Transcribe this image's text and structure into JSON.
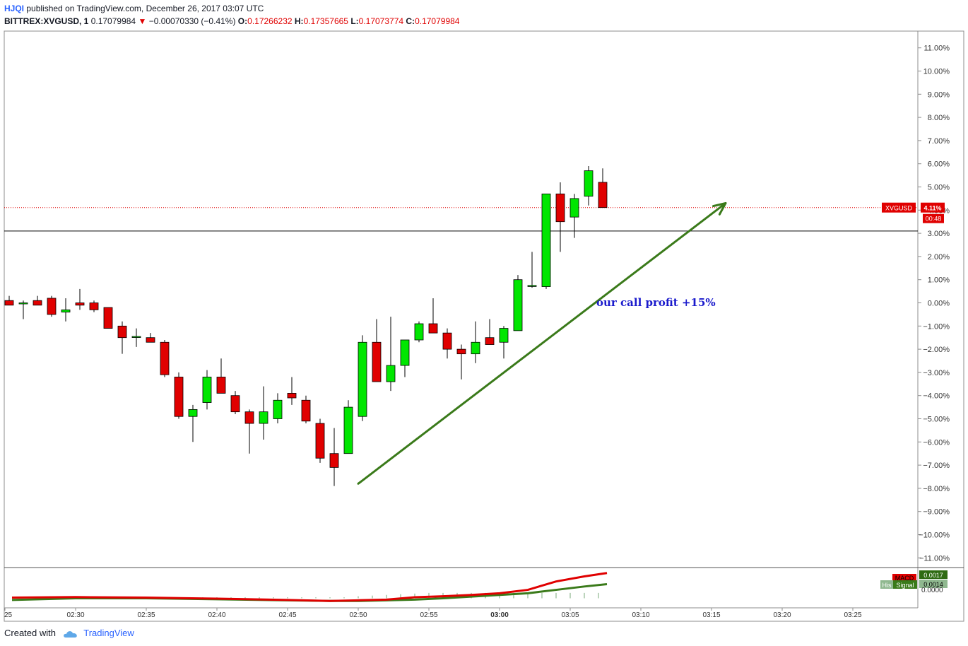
{
  "header": {
    "author": "HJQI",
    "published": "published on TradingView.com, December 26, 2017 03:07 UTC",
    "symbol": "BITTREX:XVGUSD, 1",
    "last": "0.17079984",
    "change_arrow": "▼",
    "change": "−0.00070330 (−0.41%)",
    "o_label": "O:",
    "o_value": "0.17266232",
    "h_label": "H:",
    "h_value": "0.17357665",
    "l_label": "L:",
    "l_value": "0.17073774",
    "c_label": "C:",
    "c_value": "0.17079984"
  },
  "footer": {
    "created_with": "Created with",
    "brand": "TradingView"
  },
  "colors": {
    "up": "#00e600",
    "down": "#e00000",
    "wick": "#000000",
    "arrow": "#3a7a1a",
    "annotation": "#1a1acc",
    "macd": "#e00000",
    "signal": "#3a7a1a",
    "histogram": "#8fb88f"
  },
  "chart_data": {
    "type": "candlestick",
    "y_unit": "%",
    "ylim": [
      -11.5,
      11.5
    ],
    "y_ticks": [
      "11.00%",
      "10.00%",
      "9.00%",
      "8.00%",
      "7.00%",
      "6.00%",
      "5.00%",
      "4.00%",
      "3.00%",
      "2.00%",
      "1.00%",
      "0.00%",
      "−1.00%",
      "−2.00%",
      "−3.00%",
      "−4.00%",
      "−5.00%",
      "−6.00%",
      "−7.00%",
      "−8.00%",
      "−9.00%",
      "−10.00%",
      "−11.00%"
    ],
    "x_ticks": [
      {
        "label": "25",
        "t": -5
      },
      {
        "label": "02:30",
        "t": 0
      },
      {
        "label": "02:35",
        "t": 5
      },
      {
        "label": "02:40",
        "t": 10
      },
      {
        "label": "02:45",
        "t": 15
      },
      {
        "label": "02:50",
        "t": 20
      },
      {
        "label": "02:55",
        "t": 25
      },
      {
        "label": "03:00",
        "t": 30,
        "bold": true
      },
      {
        "label": "03:05",
        "t": 35
      },
      {
        "label": "03:10",
        "t": 40
      },
      {
        "label": "03:15",
        "t": 45
      },
      {
        "label": "03:20",
        "t": 50
      },
      {
        "label": "03:25",
        "t": 55
      }
    ],
    "candles": [
      {
        "t": -4.7,
        "o": 0.1,
        "h": 0.3,
        "l": -0.1,
        "c": -0.1
      },
      {
        "t": -3.7,
        "o": 0.0,
        "h": 0.1,
        "l": -0.7,
        "c": 0.0
      },
      {
        "t": -2.7,
        "o": 0.1,
        "h": 0.3,
        "l": -0.1,
        "c": -0.1
      },
      {
        "t": -1.7,
        "o": 0.2,
        "h": 0.3,
        "l": -0.6,
        "c": -0.5
      },
      {
        "t": -0.7,
        "o": -0.4,
        "h": 0.2,
        "l": -0.8,
        "c": -0.3
      },
      {
        "t": 0.3,
        "o": 0.0,
        "h": 0.6,
        "l": -0.3,
        "c": -0.1
      },
      {
        "t": 1.3,
        "o": 0.0,
        "h": 0.1,
        "l": -0.4,
        "c": -0.3
      },
      {
        "t": 2.3,
        "o": -0.2,
        "h": -0.2,
        "l": -1.1,
        "c": -1.1
      },
      {
        "t": 3.3,
        "o": -1.0,
        "h": -0.8,
        "l": -2.2,
        "c": -1.5
      },
      {
        "t": 4.3,
        "o": -1.45,
        "h": -1.1,
        "l": -1.9,
        "c": -1.45
      },
      {
        "t": 5.3,
        "o": -1.5,
        "h": -1.3,
        "l": -1.7,
        "c": -1.7
      },
      {
        "t": 6.3,
        "o": -1.7,
        "h": -1.6,
        "l": -3.2,
        "c": -3.1
      },
      {
        "t": 7.3,
        "o": -3.2,
        "h": -3.0,
        "l": -5.0,
        "c": -4.9
      },
      {
        "t": 8.3,
        "o": -4.9,
        "h": -4.4,
        "l": -6.0,
        "c": -4.6
      },
      {
        "t": 9.3,
        "o": -4.3,
        "h": -2.9,
        "l": -4.6,
        "c": -3.2
      },
      {
        "t": 10.3,
        "o": -3.2,
        "h": -2.4,
        "l": -3.9,
        "c": -3.9
      },
      {
        "t": 11.3,
        "o": -4.0,
        "h": -3.8,
        "l": -4.8,
        "c": -4.7
      },
      {
        "t": 12.3,
        "o": -4.7,
        "h": -4.6,
        "l": -6.5,
        "c": -5.2
      },
      {
        "t": 13.3,
        "o": -5.2,
        "h": -3.6,
        "l": -5.9,
        "c": -4.7
      },
      {
        "t": 14.3,
        "o": -5.0,
        "h": -3.9,
        "l": -5.2,
        "c": -4.2
      },
      {
        "t": 15.3,
        "o": -3.9,
        "h": -3.2,
        "l": -4.4,
        "c": -4.1
      },
      {
        "t": 16.3,
        "o": -4.2,
        "h": -4.0,
        "l": -5.2,
        "c": -5.1
      },
      {
        "t": 17.3,
        "o": -5.2,
        "h": -5.0,
        "l": -6.9,
        "c": -6.7
      },
      {
        "t": 18.3,
        "o": -6.5,
        "h": -5.4,
        "l": -7.9,
        "c": -7.1
      },
      {
        "t": 19.3,
        "o": -6.5,
        "h": -4.2,
        "l": -6.5,
        "c": -4.5
      },
      {
        "t": 20.3,
        "o": -4.9,
        "h": -1.4,
        "l": -5.1,
        "c": -1.7
      },
      {
        "t": 21.3,
        "o": -1.7,
        "h": -0.7,
        "l": -3.4,
        "c": -3.4
      },
      {
        "t": 22.3,
        "o": -3.4,
        "h": -0.6,
        "l": -3.8,
        "c": -2.7
      },
      {
        "t": 23.3,
        "o": -2.7,
        "h": -1.6,
        "l": -3.2,
        "c": -1.6
      },
      {
        "t": 24.3,
        "o": -1.6,
        "h": -0.8,
        "l": -1.7,
        "c": -0.9
      },
      {
        "t": 25.3,
        "o": -0.9,
        "h": 0.2,
        "l": -1.2,
        "c": -1.3
      },
      {
        "t": 26.3,
        "o": -1.3,
        "h": -1.1,
        "l": -2.4,
        "c": -2.0
      },
      {
        "t": 27.3,
        "o": -2.0,
        "h": -1.8,
        "l": -3.3,
        "c": -2.2
      },
      {
        "t": 28.3,
        "o": -2.2,
        "h": -0.8,
        "l": -2.6,
        "c": -1.7
      },
      {
        "t": 29.3,
        "o": -1.5,
        "h": -0.7,
        "l": -1.8,
        "c": -1.8
      },
      {
        "t": 30.3,
        "o": -1.7,
        "h": -1.0,
        "l": -2.4,
        "c": -1.1
      },
      {
        "t": 31.3,
        "o": -1.2,
        "h": 1.2,
        "l": -1.2,
        "c": 1.0
      },
      {
        "t": 32.3,
        "o": 0.75,
        "h": 2.2,
        "l": 0.65,
        "c": 0.75
      },
      {
        "t": 33.3,
        "o": 0.7,
        "h": 4.7,
        "l": 0.6,
        "c": 4.7
      },
      {
        "t": 34.3,
        "o": 4.7,
        "h": 5.2,
        "l": 2.2,
        "c": 3.5
      },
      {
        "t": 35.3,
        "o": 3.7,
        "h": 4.7,
        "l": 2.8,
        "c": 4.5
      },
      {
        "t": 36.3,
        "o": 4.6,
        "h": 5.9,
        "l": 4.2,
        "c": 5.7
      },
      {
        "t": 37.3,
        "o": 5.2,
        "h": 5.8,
        "l": 4.1,
        "c": 4.11
      }
    ],
    "horizontal_line": 3.1,
    "last_price_line": 4.11,
    "price_label": {
      "symbol": "XVGUSD",
      "value": "4.11%",
      "countdown": "00:48"
    },
    "trend_arrow": {
      "from": {
        "t": 20.0,
        "y": -7.8
      },
      "to": {
        "t": 46.0,
        "y": 4.3
      }
    },
    "annotation": "our call profit +15%",
    "macd": {
      "macd_line": [
        [
          -4.5,
          0.2
        ],
        [
          0,
          0.35
        ],
        [
          5,
          0.2
        ],
        [
          10,
          -0.1
        ],
        [
          15,
          -0.5
        ],
        [
          18,
          -0.8
        ],
        [
          20,
          -0.6
        ],
        [
          22,
          -0.4
        ],
        [
          24,
          0.3
        ],
        [
          26,
          0.6
        ],
        [
          28,
          1.0
        ],
        [
          30,
          1.5
        ],
        [
          32,
          2.5
        ],
        [
          34,
          5
        ],
        [
          36,
          6.5
        ],
        [
          37.6,
          7.5
        ]
      ],
      "signal_line": [
        [
          -4.5,
          -0.5
        ],
        [
          0,
          0
        ],
        [
          5,
          0
        ],
        [
          10,
          -0.3
        ],
        [
          15,
          -0.6
        ],
        [
          18,
          -0.8
        ],
        [
          20,
          -0.8
        ],
        [
          22,
          -0.6
        ],
        [
          24,
          -0.4
        ],
        [
          26,
          0
        ],
        [
          28,
          0.5
        ],
        [
          30,
          1
        ],
        [
          32,
          1.5
        ],
        [
          34,
          2.5
        ],
        [
          36,
          3.5
        ],
        [
          37.6,
          4.2
        ]
      ],
      "histogram": [
        [
          -4,
          0.3
        ],
        [
          -3,
          0.3
        ],
        [
          -2,
          0.3
        ],
        [
          -1,
          0.3
        ],
        [
          0,
          0.3
        ],
        [
          1,
          0.3
        ],
        [
          2,
          0.3
        ],
        [
          3,
          0.3
        ],
        [
          4,
          0.3
        ],
        [
          5,
          0.3
        ],
        [
          6,
          0.3
        ],
        [
          7,
          0.3
        ],
        [
          8,
          0.3
        ],
        [
          9,
          0.3
        ],
        [
          10,
          0.3
        ],
        [
          11,
          0.3
        ],
        [
          12,
          0.3
        ],
        [
          13,
          0.3
        ],
        [
          14,
          0.3
        ],
        [
          15,
          0.3
        ],
        [
          16,
          0.3
        ],
        [
          17,
          0.3
        ],
        [
          18,
          0.3
        ],
        [
          19,
          0.3
        ],
        [
          20,
          0.6
        ],
        [
          21,
          0.8
        ],
        [
          22,
          1.0
        ],
        [
          23,
          1.2
        ],
        [
          24,
          1.4
        ],
        [
          25,
          1.6
        ],
        [
          26,
          1.6
        ],
        [
          27,
          1.6
        ],
        [
          28,
          1.6
        ],
        [
          29,
          1.6
        ],
        [
          30,
          1.6
        ],
        [
          31,
          1.6
        ],
        [
          32,
          1.6
        ],
        [
          33,
          1.6
        ],
        [
          34,
          1.6
        ],
        [
          35,
          1.6
        ],
        [
          36,
          1.6
        ],
        [
          37,
          1.6
        ]
      ],
      "ylim": [
        -2,
        8.5
      ],
      "labels": {
        "macd": "MACD",
        "signal": "Signal",
        "hist": "His",
        "macd_value": "0.0017",
        "signal_value": "0.0014",
        "zero": "0.0000"
      }
    }
  }
}
